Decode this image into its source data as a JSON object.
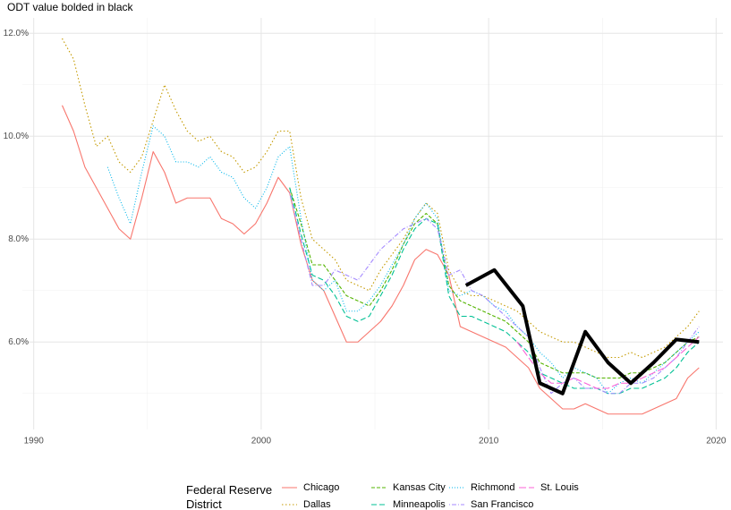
{
  "chart_data": {
    "type": "line",
    "title": "ODT value bolded in black",
    "legend_title": "Federal Reserve District",
    "legend_position": "bottom",
    "grid": true,
    "xlim": [
      1989.5,
      2020.3
    ],
    "xticks": [
      1990,
      2000,
      2010,
      2020
    ],
    "x_minor_ticks": [
      1995,
      2005,
      2015
    ],
    "ylim": [
      4.3,
      12.3
    ],
    "yticks": [
      {
        "value": 6,
        "label": "6.0%"
      },
      {
        "value": 8,
        "label": "8.0%"
      },
      {
        "value": 10,
        "label": "10.0%"
      },
      {
        "value": 12,
        "label": "12.0%"
      }
    ],
    "y_minor_ticks": [
      5,
      7,
      9,
      11
    ],
    "series": [
      {
        "name": "Chicago",
        "color": "#F8766D",
        "dash": "none",
        "x": [
          1991.25,
          1991.75,
          1992.25,
          1992.75,
          1993.25,
          1993.75,
          1994.25,
          1994.75,
          1995.25,
          1995.75,
          1996.25,
          1996.75,
          1997.25,
          1997.75,
          1998.25,
          1998.75,
          1999.25,
          1999.75,
          2000.25,
          2000.75,
          2001.25,
          2001.75,
          2002.25,
          2002.75,
          2003.25,
          2003.75,
          2004.25,
          2004.75,
          2005.25,
          2005.75,
          2006.25,
          2006.75,
          2007.25,
          2007.75,
          2008.25,
          2008.75,
          2009.25,
          2009.75,
          2010.25,
          2010.75,
          2011.25,
          2011.75,
          2012.25,
          2012.75,
          2013.25,
          2013.75,
          2014.25,
          2014.75,
          2015.25,
          2015.75,
          2016.25,
          2016.75,
          2017.25,
          2017.75,
          2018.25,
          2018.75,
          2019.25
        ],
        "values": [
          10.6,
          10.1,
          9.4,
          9.0,
          8.6,
          8.2,
          8.0,
          8.8,
          9.7,
          9.3,
          8.7,
          8.8,
          8.8,
          8.8,
          8.4,
          8.3,
          8.1,
          8.3,
          8.7,
          9.2,
          8.9,
          7.9,
          7.2,
          7.0,
          6.5,
          6.0,
          6.0,
          6.2,
          6.4,
          6.7,
          7.1,
          7.6,
          7.8,
          7.7,
          7.3,
          6.3,
          6.2,
          6.1,
          6.0,
          5.9,
          5.7,
          5.5,
          5.1,
          4.9,
          4.7,
          4.7,
          4.8,
          4.7,
          4.6,
          4.6,
          4.6,
          4.6,
          4.7,
          4.8,
          4.9,
          5.3,
          5.5
        ]
      },
      {
        "name": "Dallas",
        "color": "#C49A00",
        "dash": "1.5,2.5",
        "x": [
          1991.25,
          1991.75,
          1992.25,
          1992.75,
          1993.25,
          1993.75,
          1994.25,
          1994.75,
          1995.25,
          1995.75,
          1996.25,
          1996.75,
          1997.25,
          1997.75,
          1998.25,
          1998.75,
          1999.25,
          1999.75,
          2000.25,
          2000.75,
          2001.25,
          2001.75,
          2002.25,
          2002.75,
          2003.25,
          2003.75,
          2004.25,
          2004.75,
          2005.25,
          2005.75,
          2006.25,
          2006.75,
          2007.25,
          2007.75,
          2008.25,
          2008.75,
          2009.25,
          2009.75,
          2010.25,
          2010.75,
          2011.25,
          2011.75,
          2012.25,
          2012.75,
          2013.25,
          2013.75,
          2014.25,
          2014.75,
          2015.25,
          2015.75,
          2016.25,
          2016.75,
          2017.25,
          2017.75,
          2018.25,
          2018.75,
          2019.25
        ],
        "values": [
          11.9,
          11.5,
          10.6,
          9.8,
          10.0,
          9.5,
          9.3,
          9.6,
          10.3,
          11.0,
          10.5,
          10.1,
          9.9,
          10.0,
          9.7,
          9.6,
          9.3,
          9.4,
          9.7,
          10.1,
          10.1,
          8.8,
          8.0,
          7.8,
          7.6,
          7.2,
          7.1,
          7.0,
          7.4,
          7.7,
          8.0,
          8.4,
          8.7,
          8.5,
          7.4,
          7.0,
          6.9,
          6.9,
          6.8,
          6.7,
          6.6,
          6.4,
          6.2,
          6.1,
          6.0,
          6.0,
          5.9,
          5.8,
          5.7,
          5.7,
          5.8,
          5.7,
          5.8,
          5.9,
          6.1,
          6.3,
          6.6
        ]
      },
      {
        "name": "Kansas City",
        "color": "#53B400",
        "dash": "4,2",
        "x": [
          2001.25,
          2001.75,
          2002.25,
          2002.75,
          2003.25,
          2003.75,
          2004.25,
          2004.75,
          2005.25,
          2005.75,
          2006.25,
          2006.75,
          2007.25,
          2007.75,
          2008.25,
          2008.75,
          2009.25,
          2009.75,
          2010.25,
          2010.75,
          2011.25,
          2011.75,
          2012.25,
          2012.75,
          2013.25,
          2013.75,
          2014.25,
          2014.75,
          2015.25,
          2015.75,
          2016.25,
          2016.75,
          2017.25,
          2017.75,
          2018.25,
          2018.75,
          2019.25
        ],
        "values": [
          9.0,
          8.3,
          7.5,
          7.5,
          7.2,
          6.9,
          6.8,
          6.7,
          7.0,
          7.4,
          7.9,
          8.3,
          8.5,
          8.3,
          7.1,
          6.8,
          6.7,
          6.6,
          6.5,
          6.4,
          6.2,
          6.0,
          5.6,
          5.5,
          5.4,
          5.4,
          5.4,
          5.3,
          5.3,
          5.3,
          5.4,
          5.4,
          5.5,
          5.6,
          5.8,
          6.0,
          6.1
        ]
      },
      {
        "name": "Minneapolis",
        "color": "#00C094",
        "dash": "6,3",
        "x": [
          2001.25,
          2001.75,
          2002.25,
          2002.75,
          2003.25,
          2003.75,
          2004.25,
          2004.75,
          2005.25,
          2005.75,
          2006.25,
          2006.75,
          2007.25,
          2007.75,
          2008.25,
          2008.75,
          2009.25,
          2009.75,
          2010.25,
          2010.75,
          2011.25,
          2011.75,
          2012.25,
          2012.75,
          2013.25,
          2013.75,
          2014.25,
          2014.75,
          2015.25,
          2015.75,
          2016.25,
          2016.75,
          2017.25,
          2017.75,
          2018.25,
          2018.75,
          2019.25
        ],
        "values": [
          9.0,
          8.1,
          7.3,
          7.2,
          6.9,
          6.5,
          6.4,
          6.5,
          6.9,
          7.3,
          7.8,
          8.2,
          8.4,
          8.3,
          6.9,
          6.5,
          6.5,
          6.4,
          6.3,
          6.2,
          6.0,
          5.8,
          5.4,
          5.3,
          5.2,
          5.1,
          5.1,
          5.1,
          5.0,
          5.0,
          5.1,
          5.1,
          5.2,
          5.3,
          5.5,
          5.8,
          6.0
        ]
      },
      {
        "name": "Richmond",
        "color": "#00B6EB",
        "dash": "1,2",
        "x": [
          1993.25,
          1993.75,
          1994.25,
          1994.75,
          1995.25,
          1995.75,
          1996.25,
          1996.75,
          1997.25,
          1997.75,
          1998.25,
          1998.75,
          1999.25,
          1999.75,
          2000.25,
          2000.75,
          2001.25,
          2001.75,
          2002.25,
          2002.75,
          2003.25,
          2003.75,
          2004.25,
          2004.75,
          2005.25,
          2005.75,
          2006.25,
          2006.75,
          2007.25,
          2007.75,
          2008.25,
          2008.75,
          2009.25,
          2009.75,
          2010.25,
          2010.75,
          2011.25,
          2011.75,
          2012.25,
          2012.75,
          2013.25,
          2013.75,
          2014.25,
          2014.75,
          2015.25,
          2015.75,
          2016.25,
          2016.75,
          2017.25,
          2017.75,
          2018.25,
          2018.75,
          2019.25
        ],
        "values": [
          9.4,
          8.8,
          8.3,
          9.3,
          10.2,
          10.0,
          9.5,
          9.5,
          9.4,
          9.6,
          9.3,
          9.2,
          8.8,
          8.6,
          9.0,
          9.6,
          9.8,
          8.4,
          7.2,
          7.0,
          7.2,
          6.6,
          6.6,
          6.8,
          7.1,
          7.5,
          7.9,
          8.4,
          8.7,
          8.4,
          7.0,
          6.9,
          7.0,
          6.9,
          6.7,
          6.6,
          6.3,
          6.1,
          5.8,
          5.6,
          5.3,
          5.5,
          5.4,
          5.3,
          5.0,
          5.2,
          5.3,
          5.2,
          5.4,
          5.6,
          5.8,
          6.0,
          6.2
        ]
      },
      {
        "name": "San Francisco",
        "color": "#A58AFF",
        "dash": "1,2,5,2",
        "x": [
          2001.25,
          2001.75,
          2002.25,
          2002.75,
          2003.25,
          2003.75,
          2004.25,
          2004.75,
          2005.25,
          2005.75,
          2006.25,
          2006.75,
          2007.25,
          2007.75,
          2008.25,
          2008.75,
          2009.25,
          2009.75,
          2010.25,
          2010.75,
          2011.25,
          2011.75,
          2012.25,
          2012.75,
          2013.25,
          2013.75,
          2014.25,
          2014.75,
          2015.25,
          2015.75,
          2016.25,
          2016.75,
          2017.25,
          2017.75,
          2018.25,
          2018.75,
          2019.25
        ],
        "values": [
          8.9,
          8.0,
          7.1,
          7.1,
          7.4,
          7.3,
          7.2,
          7.5,
          7.8,
          8.0,
          8.2,
          8.3,
          8.4,
          8.2,
          7.3,
          7.4,
          7.0,
          6.9,
          6.7,
          6.5,
          6.3,
          6.1,
          5.5,
          5.0,
          5.2,
          5.3,
          5.1,
          5.1,
          5.0,
          5.0,
          5.2,
          5.2,
          5.3,
          5.5,
          5.7,
          6.0,
          6.3
        ]
      },
      {
        "name": "St. Louis",
        "color": "#FB61D7",
        "dash": "8,3",
        "x": [
          2011.25,
          2011.75,
          2012.25,
          2012.75,
          2013.25,
          2013.75,
          2014.25,
          2014.75,
          2015.25,
          2015.75,
          2016.25,
          2016.75,
          2017.25,
          2017.75,
          2018.25,
          2018.75,
          2019.25
        ],
        "values": [
          6.0,
          5.7,
          5.4,
          5.2,
          5.2,
          5.3,
          5.2,
          5.1,
          5.1,
          5.2,
          5.2,
          5.3,
          5.4,
          5.5,
          5.7,
          5.9,
          6.1
        ]
      },
      {
        "color": "#000000",
        "dash": "none",
        "width": 4,
        "x": [
          2009.0,
          2010.25,
          2011.5,
          2012.25,
          2013.25,
          2014.25,
          2015.25,
          2016.25,
          2017.25,
          2018.25,
          2019.25
        ],
        "values": [
          7.1,
          7.4,
          6.7,
          5.2,
          5.0,
          6.2,
          5.6,
          5.2,
          5.6,
          6.05,
          6.0
        ]
      }
    ]
  }
}
